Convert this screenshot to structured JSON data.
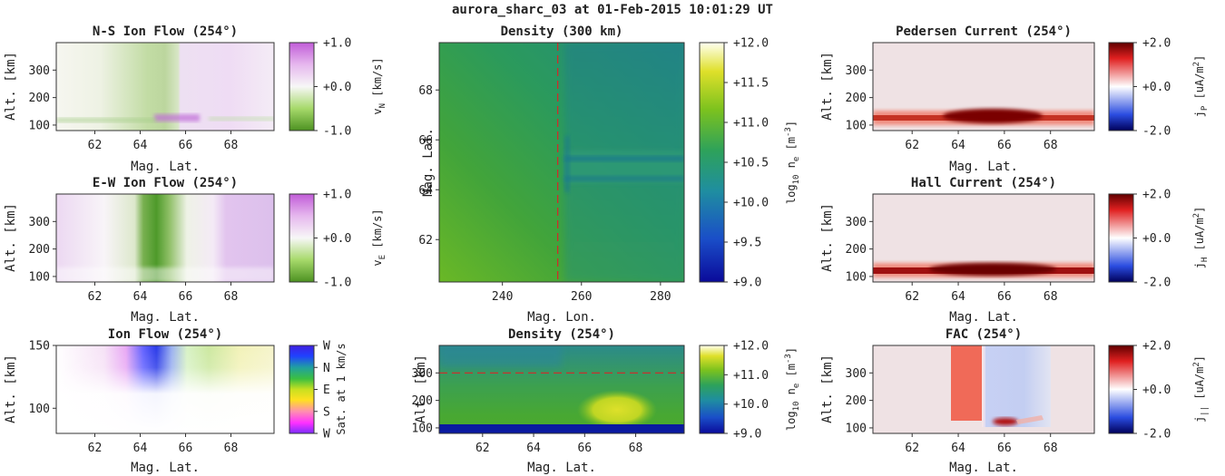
{
  "figure_title": "aurora_sharc_03 at 01-Feb-2015 10:01:29 UT",
  "colors": {
    "purple": "#c476dc",
    "green": "#4a9a2c",
    "red": "#8b0000",
    "blue": "#1c3aa8",
    "viridis_low": "#0a1fa0",
    "viridis_high": "#ffffd4",
    "cut_line": "#d62728"
  },
  "chart_data": [
    {
      "id": "ns-ion-flow",
      "type": "heatmap",
      "title": "N-S Ion Flow (254°)",
      "xlabel": "Mag. Lat.",
      "ylabel": "Alt. [km]",
      "xlim": [
        60.3,
        69.9
      ],
      "ylim": [
        80,
        400
      ],
      "xticks": [
        "62",
        "64",
        "66",
        "68"
      ],
      "yticks": [
        "100",
        "200",
        "300"
      ],
      "colorbar": {
        "label": "v",
        "sub": "N",
        "unit": " [km/s]",
        "ticks": [
          "+1.0",
          "+0.0",
          "-1.0"
        ],
        "range": [
          -1.0,
          1.0
        ],
        "colormap": "PiYG"
      }
    },
    {
      "id": "ew-ion-flow",
      "type": "heatmap",
      "title": "E-W Ion Flow (254°)",
      "xlabel": "Mag. Lat.",
      "ylabel": "Alt. [km]",
      "xlim": [
        60.3,
        69.9
      ],
      "ylim": [
        80,
        400
      ],
      "xticks": [
        "62",
        "64",
        "66",
        "68"
      ],
      "yticks": [
        "100",
        "200",
        "300"
      ],
      "colorbar": {
        "label": "v",
        "sub": "E",
        "unit": " [km/s]",
        "ticks": [
          "+1.0",
          "+0.0",
          "-1.0"
        ],
        "range": [
          -1.0,
          1.0
        ],
        "colormap": "PiYG"
      }
    },
    {
      "id": "ion-flow",
      "type": "heatmap",
      "title": "Ion Flow (254°)",
      "xlabel": "Mag. Lat.",
      "ylabel": "Alt. [km]",
      "xlim": [
        60.3,
        69.9
      ],
      "ylim": [
        80,
        150
      ],
      "xticks": [
        "62",
        "64",
        "66",
        "68"
      ],
      "yticks": [
        "100",
        "150"
      ],
      "colorbar": {
        "label": "Sat. at 1 km/s",
        "ticks": [
          "W",
          "N",
          "E",
          "S",
          "W"
        ],
        "colormap": "hue"
      }
    },
    {
      "id": "density-300km",
      "type": "heatmap",
      "title": "Density (300 km)",
      "xlabel": "Mag. Lon.",
      "ylabel": "Mag. Lat.",
      "xlim": [
        224,
        286
      ],
      "ylim": [
        60.3,
        69.9
      ],
      "xticks": [
        "240",
        "260",
        "280"
      ],
      "yticks": [
        "62",
        "64",
        "66",
        "68"
      ],
      "cut_lon": 254,
      "colorbar": {
        "label": "log",
        "sub": "10",
        "unit": " n",
        "sub2": "e",
        "unit2": " [m",
        "sup": "-3",
        "unit3": "]",
        "ticks": [
          "+12.0",
          "+11.5",
          "+11.0",
          "+10.5",
          "+10.0",
          "+9.5",
          "+9.0"
        ],
        "range": [
          9.0,
          12.0
        ],
        "colormap": "viridis"
      }
    },
    {
      "id": "density-254",
      "type": "heatmap",
      "title": "Density (254°)",
      "xlabel": "Mag. Lat.",
      "ylabel": "Alt. [km]",
      "xlim": [
        60.3,
        69.9
      ],
      "ylim": [
        80,
        400
      ],
      "xticks": [
        "62",
        "64",
        "66",
        "68"
      ],
      "yticks": [
        "100",
        "200",
        "300"
      ],
      "cut_alt": 300,
      "colorbar": {
        "label": "log",
        "sub": "10",
        "unit": " n",
        "sub2": "e",
        "unit2": " [m",
        "sup": "-3",
        "unit3": "]",
        "ticks": [
          "+12.0",
          "+11.0",
          "+10.0",
          "+9.0"
        ],
        "range": [
          9.0,
          12.0
        ],
        "colormap": "viridis"
      }
    },
    {
      "id": "pedersen-current",
      "type": "heatmap",
      "title": "Pedersen Current (254°)",
      "xlabel": "Mag. Lat.",
      "ylabel": "Alt. [km]",
      "xlim": [
        60.3,
        69.9
      ],
      "ylim": [
        80,
        400
      ],
      "xticks": [
        "62",
        "64",
        "66",
        "68"
      ],
      "yticks": [
        "100",
        "200",
        "300"
      ],
      "colorbar": {
        "label": "j",
        "sub": "P",
        "unit": " [uA/m",
        "sup": "2",
        "unit3": "]",
        "ticks": [
          "+2.0",
          "+0.0",
          "-2.0"
        ],
        "range": [
          -2.0,
          2.0
        ],
        "colormap": "seismic"
      }
    },
    {
      "id": "hall-current",
      "type": "heatmap",
      "title": "Hall Current (254°)",
      "xlabel": "Mag. Lat.",
      "ylabel": "Alt. [km]",
      "xlim": [
        60.3,
        69.9
      ],
      "ylim": [
        80,
        400
      ],
      "xticks": [
        "62",
        "64",
        "66",
        "68"
      ],
      "yticks": [
        "100",
        "200",
        "300"
      ],
      "colorbar": {
        "label": "j",
        "sub": "H",
        "unit": " [uA/m",
        "sup": "2",
        "unit3": "]",
        "ticks": [
          "+2.0",
          "+0.0",
          "-2.0"
        ],
        "range": [
          -2.0,
          2.0
        ],
        "colormap": "seismic"
      }
    },
    {
      "id": "fac",
      "type": "heatmap",
      "title": "FAC (254°)",
      "xlabel": "Mag. Lat.",
      "ylabel": "Alt. [km]",
      "xlim": [
        60.3,
        69.9
      ],
      "ylim": [
        80,
        400
      ],
      "xticks": [
        "62",
        "64",
        "66",
        "68"
      ],
      "yticks": [
        "100",
        "200",
        "300"
      ],
      "colorbar": {
        "label": "j",
        "sub": "||",
        "unit": " [uA/m",
        "sup": "2",
        "unit3": "]",
        "ticks": [
          "+2.0",
          "+0.0",
          "-2.0"
        ],
        "range": [
          -2.0,
          2.0
        ],
        "colormap": "seismic"
      }
    }
  ]
}
